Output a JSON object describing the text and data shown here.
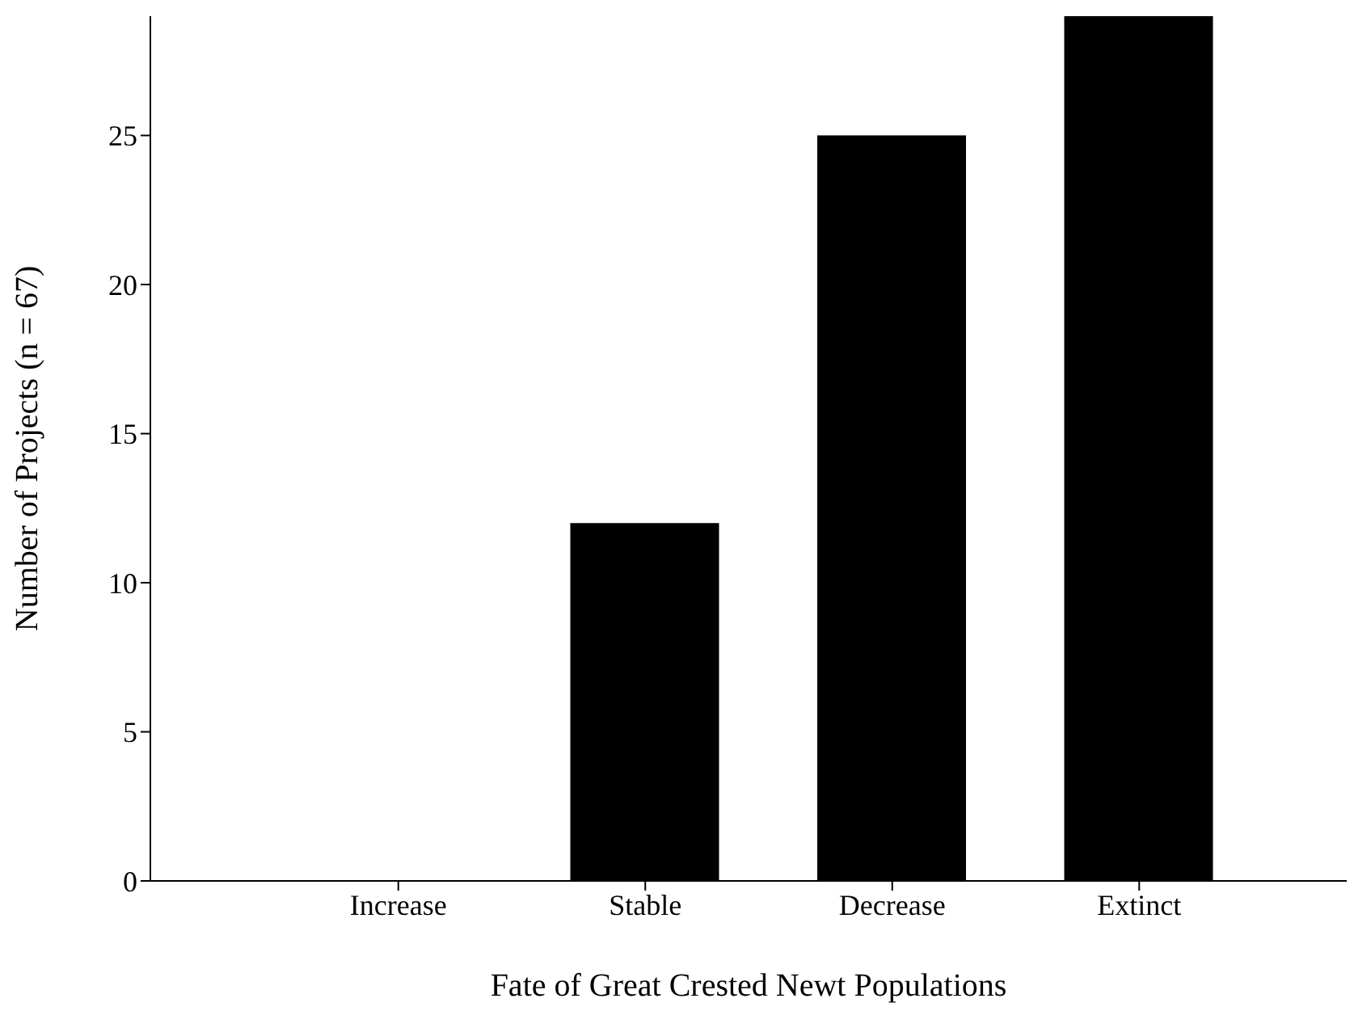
{
  "chart_data": {
    "type": "bar",
    "xlabel": "Fate of Great Crested Newt Populations",
    "ylabel": "Number of Projects (n = 67)",
    "categories": [
      "Increase",
      "Stable",
      "Decrease",
      "Extinct"
    ],
    "values": [
      0,
      12,
      25,
      29
    ],
    "color": "#000000",
    "ylim": [
      0,
      29
    ],
    "yticks": [
      0,
      5,
      10,
      15,
      20,
      25
    ],
    "grid": false,
    "legend": false
  }
}
